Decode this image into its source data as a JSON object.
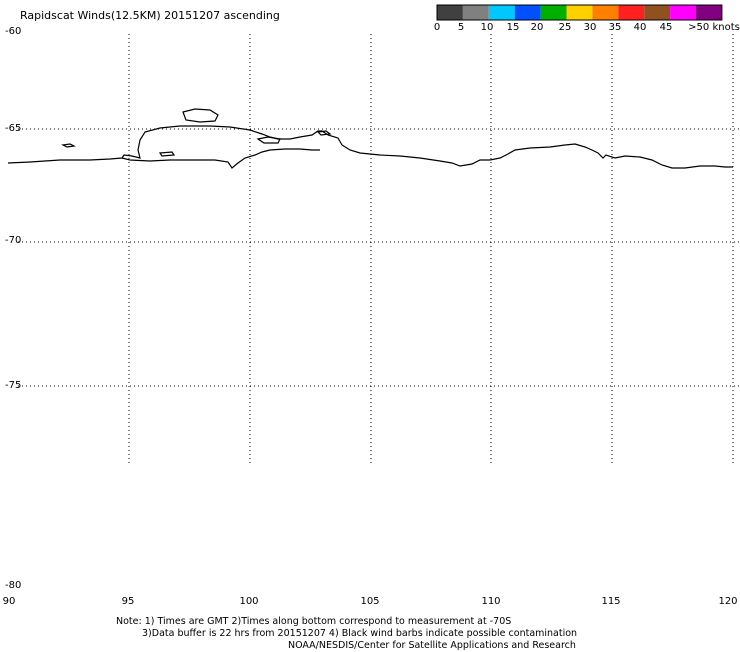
{
  "title": "Rapidscat Winds(12.5KM) 20151207 ascending",
  "colorbar": {
    "labels": [
      "0",
      "5",
      "10",
      "15",
      "20",
      "25",
      "30",
      "35",
      "40",
      "45",
      ">50 knots"
    ],
    "colors": [
      "#404040",
      "#808080",
      "#00c8ff",
      "#0050ff",
      "#00b000",
      "#ffd000",
      "#ff8000",
      "#ff2020",
      "#905020",
      "#ff00ff",
      "#800080"
    ]
  },
  "map": {
    "lon_ticks": [
      "90",
      "95",
      "100",
      "105",
      "110",
      "115",
      "120"
    ],
    "lat_ticks": [
      "-60",
      "-65",
      "-70",
      "-75",
      "-80"
    ],
    "lon_range": [
      90,
      120
    ],
    "lat_range": [
      -60,
      -80
    ],
    "grid": true,
    "gridline_style": "dotted",
    "coastline": "Antarctic coast (East Antarctica)"
  },
  "notes": {
    "line1": "Note: 1) Times are GMT 2)Times along bottom correspond to measurement at -70S",
    "line2": "3)Data buffer is 22 hrs from 20151207 4) Black wind barbs indicate possible contamination",
    "line3": "NOAA/NESDIS/Center for Satellite Applications and Research"
  }
}
